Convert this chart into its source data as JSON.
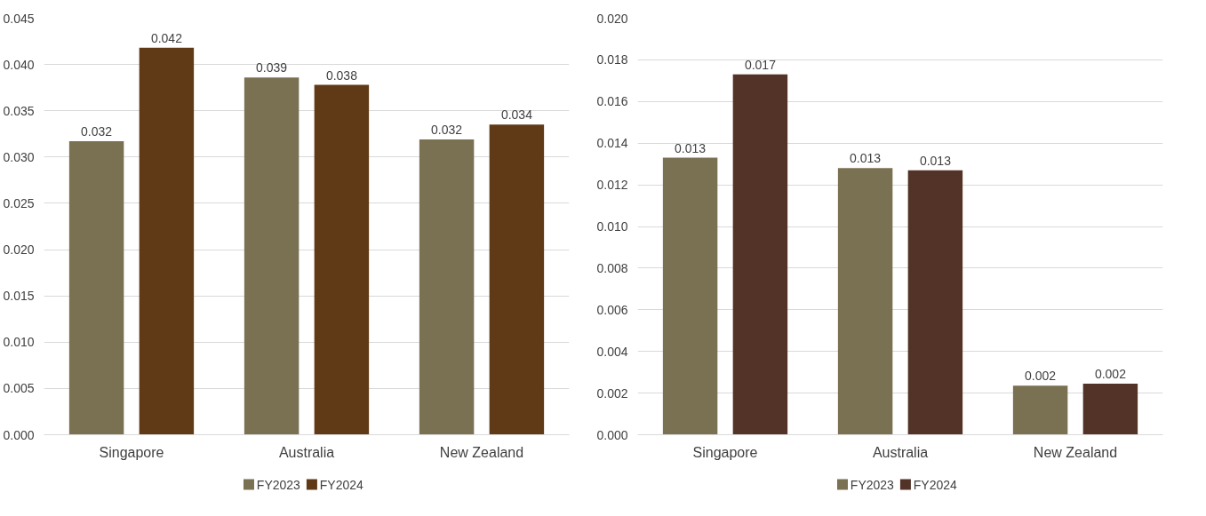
{
  "chart_data": [
    {
      "type": "bar",
      "categories": [
        "Singapore",
        "Australia",
        "New Zealand"
      ],
      "series": [
        {
          "name": "FY2023",
          "color": "#7a7052",
          "values": [
            0.0317,
            0.0386,
            0.0319
          ],
          "value_labels": [
            "0.032",
            "0.039",
            "0.032"
          ]
        },
        {
          "name": "FY2024",
          "color": "#603a17",
          "values": [
            0.0418,
            0.0378,
            0.0335
          ],
          "value_labels": [
            "0.042",
            "0.038",
            "0.034"
          ]
        }
      ],
      "ylim": [
        0,
        0.045
      ],
      "yticks": [
        {
          "value": 0,
          "label": "0.000"
        },
        {
          "value": 0.005,
          "label": "0.005"
        },
        {
          "value": 0.01,
          "label": "0.010"
        },
        {
          "value": 0.015,
          "label": "0.015"
        },
        {
          "value": 0.02,
          "label": "0.020"
        },
        {
          "value": 0.025,
          "label": "0.025"
        },
        {
          "value": 0.03,
          "label": "0.030"
        },
        {
          "value": 0.035,
          "label": "0.035"
        },
        {
          "value": 0.04,
          "label": "0.040"
        },
        {
          "value": 0.045,
          "label": "0.045"
        }
      ],
      "grid": "y",
      "legend": "bottom"
    },
    {
      "type": "bar",
      "categories": [
        "Singapore",
        "Australia",
        "New Zealand"
      ],
      "series": [
        {
          "name": "FY2023",
          "color": "#7a7052",
          "values": [
            0.0133,
            0.0128,
            0.00236
          ],
          "value_labels": [
            "0.013",
            "0.013",
            "0.002"
          ]
        },
        {
          "name": "FY2024",
          "color": "#533327",
          "values": [
            0.0173,
            0.0127,
            0.00245
          ],
          "value_labels": [
            "0.017",
            "0.013",
            "0.002"
          ]
        }
      ],
      "ylim": [
        0,
        0.02
      ],
      "yticks": [
        {
          "value": 0,
          "label": "0.000"
        },
        {
          "value": 0.002,
          "label": "0.002"
        },
        {
          "value": 0.004,
          "label": "0.004"
        },
        {
          "value": 0.006,
          "label": "0.006"
        },
        {
          "value": 0.008,
          "label": "0.008"
        },
        {
          "value": 0.01,
          "label": "0.010"
        },
        {
          "value": 0.012,
          "label": "0.012"
        },
        {
          "value": 0.014,
          "label": "0.014"
        },
        {
          "value": 0.016,
          "label": "0.016"
        },
        {
          "value": 0.018,
          "label": "0.018"
        },
        {
          "value": 0.02,
          "label": "0.020"
        }
      ],
      "grid": "y",
      "legend": "bottom"
    }
  ]
}
